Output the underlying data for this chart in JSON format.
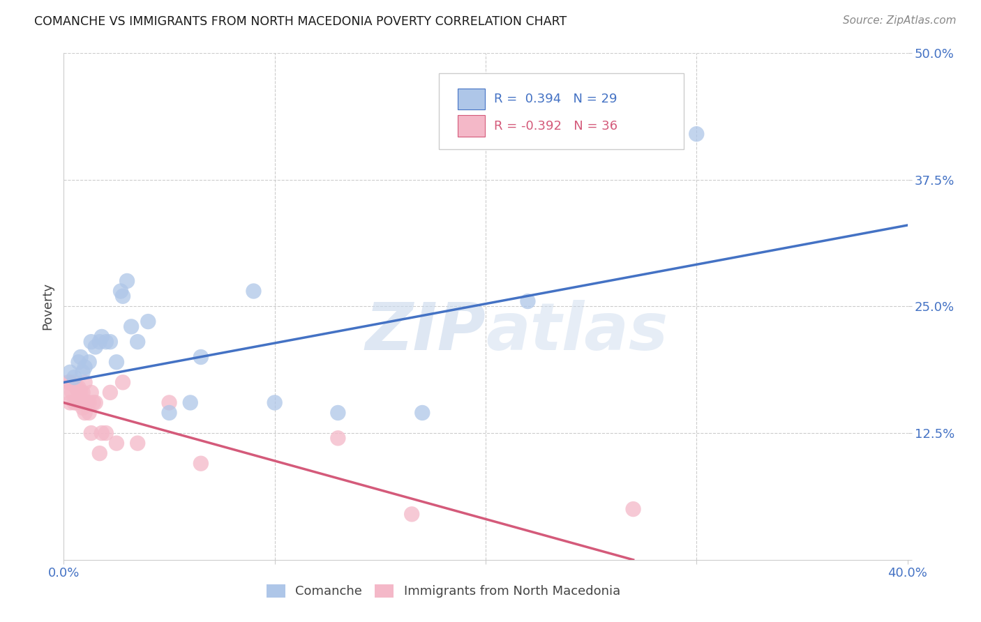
{
  "title": "COMANCHE VS IMMIGRANTS FROM NORTH MACEDONIA POVERTY CORRELATION CHART",
  "source": "Source: ZipAtlas.com",
  "ylabel": "Poverty",
  "xlim": [
    0.0,
    0.4
  ],
  "ylim": [
    0.0,
    0.5
  ],
  "xticks": [
    0.0,
    0.1,
    0.2,
    0.3,
    0.4
  ],
  "xticklabels": [
    "0.0%",
    "",
    "",
    "",
    "40.0%"
  ],
  "yticks": [
    0.0,
    0.125,
    0.25,
    0.375,
    0.5
  ],
  "yticklabels": [
    "",
    "12.5%",
    "25.0%",
    "37.5%",
    "50.0%"
  ],
  "blue_R": 0.394,
  "blue_N": 29,
  "pink_R": -0.392,
  "pink_N": 36,
  "blue_label": "Comanche",
  "pink_label": "Immigrants from North Macedonia",
  "blue_color": "#aec6e8",
  "blue_line_color": "#4472c4",
  "pink_color": "#f4b8c8",
  "pink_line_color": "#d45a7a",
  "blue_scatter_x": [
    0.003,
    0.005,
    0.007,
    0.008,
    0.009,
    0.01,
    0.012,
    0.013,
    0.015,
    0.017,
    0.018,
    0.02,
    0.022,
    0.025,
    0.027,
    0.028,
    0.03,
    0.032,
    0.035,
    0.04,
    0.05,
    0.06,
    0.065,
    0.09,
    0.1,
    0.13,
    0.17,
    0.22,
    0.3
  ],
  "blue_scatter_y": [
    0.185,
    0.18,
    0.195,
    0.2,
    0.185,
    0.19,
    0.195,
    0.215,
    0.21,
    0.215,
    0.22,
    0.215,
    0.215,
    0.195,
    0.265,
    0.26,
    0.275,
    0.23,
    0.215,
    0.235,
    0.145,
    0.155,
    0.2,
    0.265,
    0.155,
    0.145,
    0.145,
    0.255,
    0.42
  ],
  "pink_scatter_x": [
    0.001,
    0.002,
    0.003,
    0.003,
    0.004,
    0.005,
    0.005,
    0.006,
    0.006,
    0.007,
    0.007,
    0.008,
    0.008,
    0.009,
    0.009,
    0.01,
    0.01,
    0.011,
    0.012,
    0.012,
    0.013,
    0.013,
    0.014,
    0.015,
    0.017,
    0.018,
    0.02,
    0.022,
    0.025,
    0.028,
    0.035,
    0.05,
    0.065,
    0.13,
    0.165,
    0.27
  ],
  "pink_scatter_y": [
    0.165,
    0.175,
    0.155,
    0.175,
    0.165,
    0.175,
    0.155,
    0.17,
    0.155,
    0.165,
    0.17,
    0.155,
    0.165,
    0.15,
    0.165,
    0.145,
    0.175,
    0.155,
    0.155,
    0.145,
    0.165,
    0.125,
    0.155,
    0.155,
    0.105,
    0.125,
    0.125,
    0.165,
    0.115,
    0.175,
    0.115,
    0.155,
    0.095,
    0.12,
    0.045,
    0.05
  ],
  "blue_line_x": [
    0.0,
    0.4
  ],
  "blue_line_y": [
    0.175,
    0.33
  ],
  "pink_line_x": [
    0.0,
    0.27
  ],
  "pink_line_y": [
    0.155,
    0.0
  ],
  "watermark_zip": "ZIP",
  "watermark_atlas": "atlas",
  "background_color": "#ffffff",
  "grid_color": "#cccccc"
}
